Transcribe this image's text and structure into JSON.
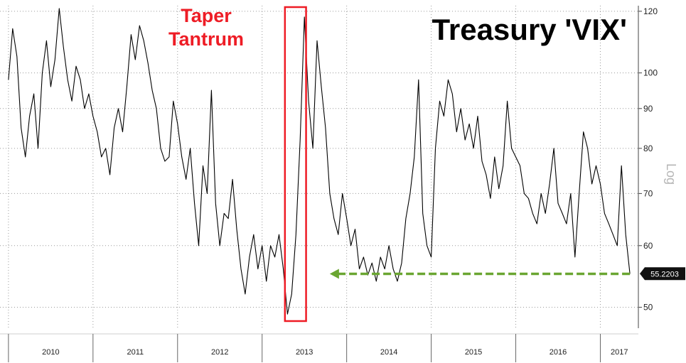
{
  "chart_data": {
    "type": "line",
    "title": "Treasury 'VIX'",
    "scale_label": "Log",
    "y_scale": "log",
    "ylim": [
      47,
      122
    ],
    "y_ticks": [
      50,
      60,
      70,
      80,
      90,
      100,
      120
    ],
    "xlim": [
      2009.9,
      2017.45
    ],
    "x_tick_years": [
      "2010",
      "2011",
      "2012",
      "2013",
      "2014",
      "2015",
      "2016",
      "2017"
    ],
    "grid": true,
    "last_value": 55.2203,
    "last_value_label": "55.2203",
    "annotation": {
      "text_line1": "Taper",
      "text_line2": "Tantrum",
      "color": "#ee1c25",
      "x_range": [
        2013.27,
        2013.52
      ],
      "y_range": [
        48,
        122
      ]
    },
    "support_arrow": {
      "color": "#6aa631",
      "y": 55.2,
      "x_from": 2017.35,
      "x_to": 2013.8
    },
    "series": [
      {
        "x": [
          2010.0,
          2010.05,
          2010.1,
          2010.15,
          2010.2,
          2010.25,
          2010.3,
          2010.35,
          2010.4,
          2010.45,
          2010.5,
          2010.55,
          2010.6,
          2010.65,
          2010.7,
          2010.75,
          2010.8,
          2010.85,
          2010.9,
          2010.95,
          2011.0,
          2011.05,
          2011.1,
          2011.15,
          2011.2,
          2011.25,
          2011.3,
          2011.35,
          2011.4,
          2011.45,
          2011.5,
          2011.55,
          2011.6,
          2011.65,
          2011.7,
          2011.75,
          2011.8,
          2011.85,
          2011.9,
          2011.95,
          2012.0,
          2012.05,
          2012.1,
          2012.15,
          2012.2,
          2012.25,
          2012.3,
          2012.35,
          2012.4,
          2012.45,
          2012.5,
          2012.55,
          2012.6,
          2012.65,
          2012.7,
          2012.75,
          2012.8,
          2012.85,
          2012.9,
          2012.95,
          2013.0,
          2013.05,
          2013.1,
          2013.15,
          2013.2,
          2013.25,
          2013.3,
          2013.35,
          2013.4,
          2013.45,
          2013.5,
          2013.55,
          2013.6,
          2013.65,
          2013.7,
          2013.75,
          2013.8,
          2013.85,
          2013.9,
          2013.95,
          2014.0,
          2014.05,
          2014.1,
          2014.15,
          2014.2,
          2014.25,
          2014.3,
          2014.35,
          2014.4,
          2014.45,
          2014.5,
          2014.55,
          2014.6,
          2014.65,
          2014.7,
          2014.75,
          2014.8,
          2014.85,
          2014.9,
          2014.95,
          2015.0,
          2015.05,
          2015.1,
          2015.15,
          2015.2,
          2015.25,
          2015.3,
          2015.35,
          2015.4,
          2015.45,
          2015.5,
          2015.55,
          2015.6,
          2015.65,
          2015.7,
          2015.75,
          2015.8,
          2015.85,
          2015.9,
          2015.95,
          2016.0,
          2016.05,
          2016.1,
          2016.15,
          2016.2,
          2016.25,
          2016.3,
          2016.35,
          2016.4,
          2016.45,
          2016.5,
          2016.55,
          2016.6,
          2016.65,
          2016.7,
          2016.75,
          2016.8,
          2016.85,
          2016.9,
          2016.95,
          2017.0,
          2017.05,
          2017.1,
          2017.15,
          2017.2,
          2017.25,
          2017.3,
          2017.35
        ],
        "values": [
          98,
          114,
          105,
          85,
          78,
          88,
          94,
          80,
          100,
          110,
          96,
          104,
          121,
          108,
          98,
          92,
          102,
          98,
          90,
          94,
          88,
          84,
          78,
          80,
          74,
          85,
          90,
          84,
          96,
          112,
          104,
          115,
          110,
          103,
          95,
          90,
          80,
          77,
          78,
          92,
          86,
          78,
          73,
          80,
          68,
          60,
          76,
          70,
          95,
          68,
          60,
          66,
          65,
          73,
          63,
          56,
          52,
          58,
          62,
          56,
          60,
          54,
          60,
          58,
          62,
          56,
          49,
          52,
          62,
          82,
          118,
          92,
          80,
          110,
          96,
          85,
          70,
          65,
          62,
          70,
          65,
          60,
          63,
          56,
          58,
          55,
          57,
          54,
          58,
          56,
          60,
          56,
          54,
          57,
          65,
          70,
          78,
          98,
          66,
          60,
          58,
          80,
          92,
          88,
          98,
          94,
          84,
          90,
          82,
          86,
          80,
          88,
          77,
          74,
          69,
          78,
          71,
          76,
          92,
          80,
          78,
          76,
          70,
          69,
          66,
          64,
          70,
          66,
          72,
          80,
          68,
          66,
          64,
          70,
          58,
          70,
          84,
          80,
          72,
          76,
          72,
          66,
          64,
          62,
          60,
          76,
          62,
          55.2
        ]
      }
    ]
  }
}
